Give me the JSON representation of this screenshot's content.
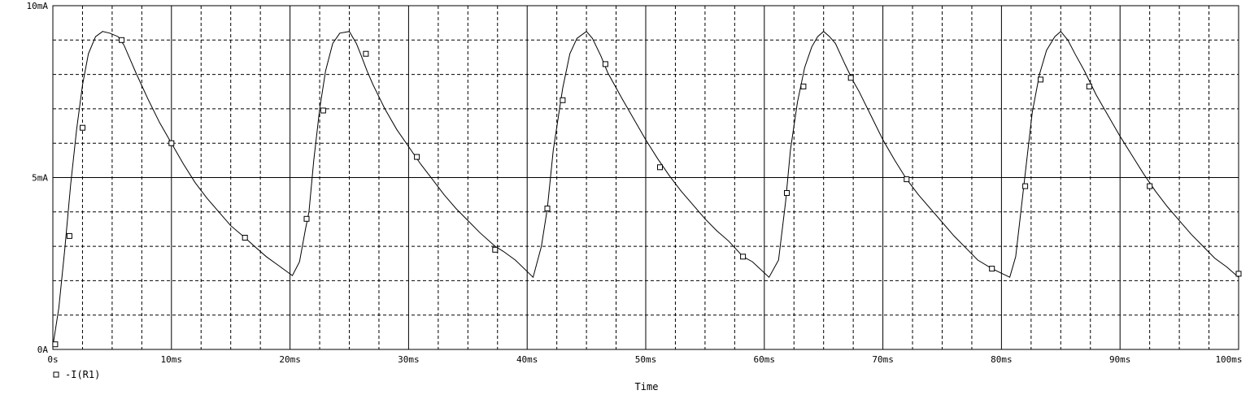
{
  "chart_data": {
    "type": "line",
    "xlabel": "Time",
    "ylabel": "",
    "xlim": [
      0,
      100
    ],
    "ylim": [
      0,
      10
    ],
    "grid": true,
    "legend_placement": "bottom-left",
    "x_ticks": [
      0,
      10,
      20,
      30,
      40,
      50,
      60,
      70,
      80,
      90,
      100
    ],
    "x_tick_labels": [
      "0s",
      "10ms",
      "20ms",
      "30ms",
      "40ms",
      "50ms",
      "60ms",
      "70ms",
      "80ms",
      "90ms",
      "100ms"
    ],
    "y_ticks": [
      0,
      5,
      10
    ],
    "y_tick_labels": [
      "0A",
      "5mA",
      "10mA"
    ],
    "x_unit": "ms",
    "y_unit": "mA",
    "series": [
      {
        "name": "-I(R1)",
        "color": "#000000",
        "marker": "square",
        "x": [
          0.0,
          0.5,
          1.0,
          1.5,
          2.0,
          2.5,
          3.0,
          3.6,
          4.2,
          4.8,
          5.5,
          6.0,
          6.5,
          7.0,
          8.0,
          9.0,
          10.0,
          11.0,
          12.0,
          13.0,
          14.0,
          15.0,
          16.2,
          17.0,
          18.0,
          19.0,
          20.2,
          20.8,
          21.3,
          21.6,
          22.0,
          22.5,
          23.0,
          23.6,
          24.2,
          25.0,
          25.6,
          26.0,
          26.5,
          27.0,
          28.0,
          29.0,
          30.0,
          31.0,
          32.0,
          33.0,
          34.0,
          35.0,
          36.0,
          37.3,
          38.0,
          39.0,
          40.5,
          41.2,
          41.7,
          42.2,
          43.0,
          43.6,
          44.2,
          45.0,
          45.5,
          46.2,
          46.8,
          48.0,
          49.0,
          50.0,
          51.0,
          52.0,
          53.0,
          54.0,
          55.0,
          56.0,
          57.0,
          58.2,
          59.0,
          60.4,
          61.2,
          61.8,
          62.2,
          62.8,
          63.4,
          64.0,
          64.5,
          65.0,
          65.5,
          66.0,
          66.8,
          67.5,
          68.0,
          69.0,
          70.0,
          71.0,
          72.0,
          73.0,
          74.0,
          75.0,
          76.0,
          77.0,
          78.0,
          79.2,
          80.7,
          81.2,
          81.7,
          82.1,
          82.6,
          83.2,
          83.8,
          84.5,
          85.0,
          85.6,
          86.2,
          87.0,
          88.0,
          89.0,
          90.0,
          91.0,
          92.0,
          93.0,
          94.0,
          95.0,
          96.0,
          97.0,
          98.0,
          99.0,
          100.0
        ],
        "y": [
          0.1,
          1.2,
          2.9,
          4.8,
          6.4,
          7.7,
          8.6,
          9.1,
          9.25,
          9.2,
          9.1,
          8.85,
          8.45,
          8.05,
          7.3,
          6.6,
          6.0,
          5.4,
          4.85,
          4.4,
          4.0,
          3.6,
          3.25,
          3.0,
          2.7,
          2.45,
          2.15,
          2.55,
          3.5,
          4.0,
          5.5,
          7.0,
          8.1,
          8.9,
          9.2,
          9.25,
          8.9,
          8.55,
          8.1,
          7.7,
          7.0,
          6.4,
          5.9,
          5.4,
          4.95,
          4.5,
          4.1,
          3.75,
          3.4,
          3.0,
          2.85,
          2.6,
          2.1,
          3.0,
          4.1,
          5.8,
          7.6,
          8.6,
          9.05,
          9.25,
          9.05,
          8.55,
          8.05,
          7.3,
          6.7,
          6.1,
          5.55,
          5.05,
          4.6,
          4.2,
          3.8,
          3.45,
          3.15,
          2.7,
          2.55,
          2.1,
          2.6,
          4.3,
          5.8,
          7.2,
          8.2,
          8.8,
          9.1,
          9.25,
          9.1,
          8.9,
          8.3,
          7.8,
          7.5,
          6.8,
          6.1,
          5.5,
          4.95,
          4.5,
          4.1,
          3.7,
          3.3,
          2.95,
          2.6,
          2.35,
          2.1,
          2.7,
          4.2,
          5.4,
          6.9,
          8.0,
          8.7,
          9.1,
          9.25,
          9.0,
          8.6,
          8.1,
          7.4,
          6.8,
          6.2,
          5.65,
          5.1,
          4.6,
          4.15,
          3.75,
          3.35,
          3.0,
          2.65,
          2.4,
          2.1
        ],
        "marker_x": [
          0.2,
          1.4,
          2.5,
          5.8,
          10.0,
          16.2,
          21.4,
          22.8,
          26.4,
          30.7,
          37.3,
          41.7,
          43.0,
          46.6,
          51.2,
          58.2,
          61.9,
          63.3,
          67.3,
          72.0,
          79.2,
          82.0,
          83.3,
          87.4,
          92.5,
          100.0
        ],
        "marker_y": [
          0.15,
          3.3,
          6.45,
          9.0,
          6.0,
          3.25,
          3.8,
          6.95,
          8.6,
          5.6,
          2.9,
          4.1,
          7.25,
          8.3,
          5.3,
          2.7,
          4.55,
          7.65,
          7.9,
          4.95,
          2.35,
          4.75,
          7.85,
          7.65,
          4.75,
          2.2
        ]
      }
    ]
  },
  "legend": {
    "label": "-I(R1)"
  }
}
